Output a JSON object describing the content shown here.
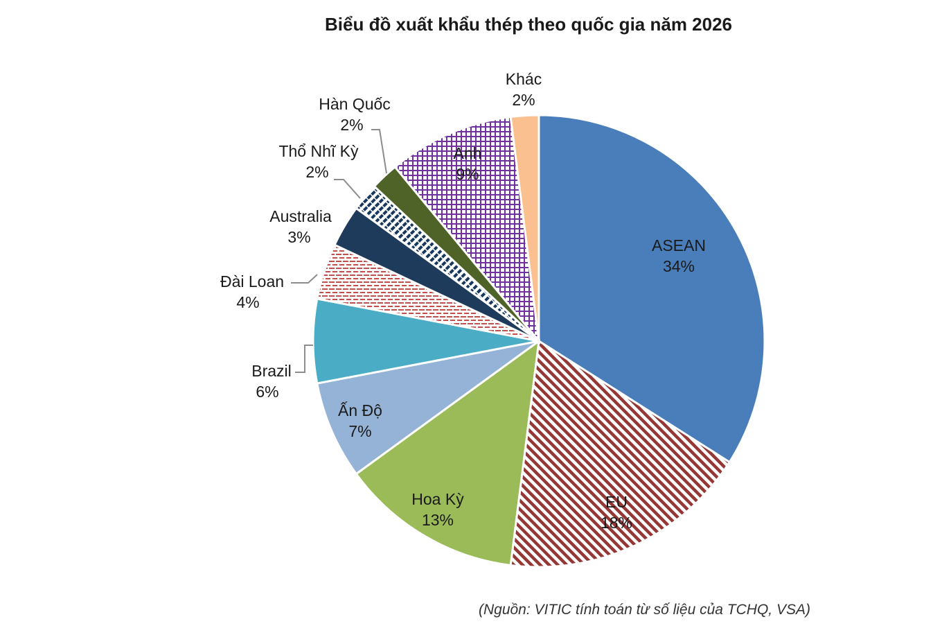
{
  "chart_data": {
    "type": "pie",
    "title": "Biểu đồ xuất khẩu thép theo quốc gia năm 2026",
    "start_angle_deg": 0,
    "direction": "clockwise",
    "slices": [
      {
        "name": "ASEAN",
        "value": 34,
        "label": "34%",
        "color": "#4a7ebb",
        "pattern": "solid",
        "label_style": "inside"
      },
      {
        "name": "EU",
        "value": 18,
        "label": "18%",
        "color": "#953735",
        "pattern": "diagonal-stripes",
        "label_style": "inside"
      },
      {
        "name": "Hoa Kỳ",
        "value": 13,
        "label": "13%",
        "color": "#9bbb59",
        "pattern": "solid",
        "label_style": "inside"
      },
      {
        "name": "Ấn Độ",
        "value": 7,
        "label": "7%",
        "color": "#95b3d7",
        "pattern": "solid",
        "label_style": "inside"
      },
      {
        "name": "Brazil",
        "value": 6,
        "label": "6%",
        "color": "#4bacc6",
        "pattern": "solid",
        "label_style": "outside"
      },
      {
        "name": "Đài Loan",
        "value": 4,
        "label": "4%",
        "color": "#c0504d",
        "pattern": "horizontal-stripes",
        "label_style": "outside"
      },
      {
        "name": "Australia",
        "value": 3,
        "label": "3%",
        "color": "#1f3b5c",
        "pattern": "solid",
        "label_style": "outside"
      },
      {
        "name": "Thổ Nhĩ Kỳ",
        "value": 2,
        "label": "2%",
        "color": "#17375e",
        "pattern": "dash-stripes",
        "label_style": "outside"
      },
      {
        "name": "Hàn Quốc",
        "value": 2,
        "label": "2%",
        "color": "#4f6228",
        "pattern": "solid",
        "label_style": "outside"
      },
      {
        "name": "Anh",
        "value": 9,
        "label": "9%",
        "color": "#7030a0",
        "pattern": "grid",
        "label_style": "inside"
      },
      {
        "name": "Khác",
        "value": 2,
        "label": "2%",
        "color": "#fac090",
        "pattern": "solid",
        "label_style": "outside"
      }
    ],
    "legend": "none"
  },
  "source_note": "(Nguồn: VITIC tính toán từ số liệu của TCHQ, VSA)"
}
